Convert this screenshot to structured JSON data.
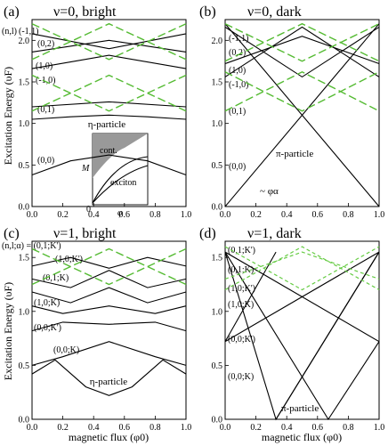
{
  "colors": {
    "black_curves": "#000000",
    "green_dashed": "#55bb33",
    "inset_fill": "#999999"
  },
  "shared": {
    "ylabel_top": "Excitation Energy (υF)",
    "ylabel_bottom": "Excitation Energy (υF)",
    "xlabel": "magnetic flux (φ0)",
    "xtick_labels": [
      "0.0",
      "0.2",
      "0.4",
      "0.6",
      "0.8",
      "1.0"
    ]
  },
  "chart_data": [
    {
      "panel": "(a)",
      "title": "ν=0, bright",
      "type": "line",
      "xlim": [
        0,
        1
      ],
      "ylim": [
        0,
        2.25
      ],
      "yticks": [
        "0.0",
        "0.5",
        "1.0",
        "1.5",
        "2.0"
      ],
      "level_labels": [
        "(n,l)",
        "(-1,1)",
        "(0,2)",
        "(1,0)",
        "(-1,0)",
        "(0,1)",
        "(0,0)"
      ],
      "annotations": [
        "η-particle"
      ],
      "inset": {
        "label_cont": "cont.",
        "label_exciton": "exciton",
        "ylabel": "M",
        "xlabel": "φ",
        "origin": "0"
      },
      "series_black": [
        {
          "name": "(0,0)",
          "x": [
            0,
            0.25,
            0.5,
            0.75,
            1
          ],
          "y": [
            0.38,
            0.55,
            0.62,
            0.55,
            0.38
          ]
        },
        {
          "name": "η-particle",
          "x": [
            0,
            0.25,
            0.5,
            0.75,
            1
          ],
          "y": [
            1.05,
            1.08,
            1.1,
            1.08,
            1.05
          ]
        },
        {
          "name": "(0,1)",
          "x": [
            0,
            0.5,
            1
          ],
          "y": [
            1.2,
            1.26,
            1.2
          ]
        },
        {
          "name": "(1,0)",
          "x": [
            0,
            0.5,
            1
          ],
          "y": [
            1.66,
            1.82,
            1.66
          ]
        },
        {
          "name": "(0,2)",
          "x": [
            0,
            0.5,
            1
          ],
          "y": [
            1.86,
            2.0,
            1.86
          ]
        },
        {
          "name": "(-1,1)",
          "x": [
            0,
            0.5,
            1
          ],
          "y": [
            2.08,
            1.9,
            2.08
          ]
        }
      ],
      "series_green": [
        {
          "x": [
            0,
            0.5,
            1
          ],
          "y": [
            1.15,
            1.58,
            1.15
          ]
        },
        {
          "x": [
            0,
            0.5,
            1
          ],
          "y": [
            1.58,
            1.15,
            1.58
          ]
        },
        {
          "x": [
            0,
            0.5,
            1
          ],
          "y": [
            2.2,
            1.77,
            2.2
          ]
        },
        {
          "x": [
            0,
            0.5,
            1
          ],
          "y": [
            1.77,
            2.2,
            1.77
          ]
        }
      ]
    },
    {
      "panel": "(b)",
      "title": "ν=0, dark",
      "type": "line",
      "xlim": [
        0,
        1
      ],
      "ylim": [
        0,
        2.25
      ],
      "yticks": [
        "0.0",
        "0.5",
        "1.0",
        "1.5",
        "2.0"
      ],
      "level_labels": [
        "(-1,1)",
        "(0,2)",
        "(1,0)",
        "(-1,0)",
        "(0,1)",
        "(0,0)"
      ],
      "annotations": [
        "π-particle",
        "~ φα"
      ],
      "series_black": [
        {
          "name": "(0,0) rising",
          "x": [
            0,
            1
          ],
          "y": [
            0,
            2.2
          ]
        },
        {
          "name": "(0,0) falling",
          "x": [
            0,
            1
          ],
          "y": [
            2.2,
            0
          ]
        },
        {
          "x": [
            0,
            0.5,
            1
          ],
          "y": [
            1.56,
            2.16,
            1.56
          ]
        },
        {
          "x": [
            0,
            0.5,
            1
          ],
          "y": [
            2.16,
            1.56,
            2.16
          ]
        },
        {
          "x": [
            0,
            0.5,
            1
          ],
          "y": [
            1.72,
            2.05,
            1.72
          ]
        }
      ],
      "series_green": [
        {
          "x": [
            0,
            0.5,
            1
          ],
          "y": [
            1.15,
            1.62,
            1.15
          ]
        },
        {
          "x": [
            0,
            0.5,
            1
          ],
          "y": [
            1.62,
            1.15,
            1.62
          ]
        },
        {
          "x": [
            0,
            0.5,
            1
          ],
          "y": [
            2.2,
            1.75,
            2.2
          ]
        },
        {
          "x": [
            0,
            0.5,
            1
          ],
          "y": [
            1.75,
            2.2,
            1.75
          ]
        }
      ]
    },
    {
      "panel": "(c)",
      "title": "ν=1, bright",
      "type": "line",
      "xlim": [
        0,
        1
      ],
      "ylim": [
        0,
        1.65
      ],
      "yticks": [
        "0.0",
        "0.5",
        "1.0",
        "1.5"
      ],
      "level_labels": [
        "(n,l;α) = (0,1;K')",
        "(1,0;K')",
        "(0,1;K)",
        "(1,0;K)",
        "(0,0;K')",
        "(0,0;K)"
      ],
      "annotations": [
        "η-particle"
      ],
      "series_black": [
        {
          "x": [
            0,
            0.15,
            0.35,
            0.5,
            0.65,
            0.85,
            1
          ],
          "y": [
            0.42,
            0.55,
            0.3,
            0.22,
            0.3,
            0.55,
            0.42
          ]
        },
        {
          "x": [
            0,
            0.2,
            0.5,
            0.8,
            1
          ],
          "y": [
            0.5,
            0.58,
            0.72,
            0.58,
            0.5
          ]
        },
        {
          "x": [
            0,
            0.2,
            0.5,
            0.8,
            1
          ],
          "y": [
            0.82,
            0.9,
            0.88,
            0.9,
            0.82
          ]
        },
        {
          "x": [
            0,
            0.2,
            0.5,
            0.8,
            1
          ],
          "y": [
            1.05,
            0.98,
            1.05,
            0.98,
            1.05
          ]
        },
        {
          "x": [
            0,
            0.25,
            0.5,
            0.75,
            1
          ],
          "y": [
            1.18,
            1.08,
            1.22,
            1.08,
            1.18
          ]
        },
        {
          "x": [
            0,
            0.25,
            0.5,
            0.75,
            1
          ],
          "y": [
            1.3,
            1.22,
            1.38,
            1.22,
            1.3
          ]
        },
        {
          "x": [
            0,
            0.25,
            0.5,
            0.75,
            1
          ],
          "y": [
            1.42,
            1.5,
            1.4,
            1.5,
            1.42
          ]
        }
      ],
      "series_green": [
        {
          "x": [
            0,
            0.5,
            1
          ],
          "y": [
            1.25,
            1.58,
            1.25
          ]
        },
        {
          "x": [
            0,
            0.5,
            1
          ],
          "y": [
            1.58,
            1.25,
            1.58
          ]
        }
      ]
    },
    {
      "panel": "(d)",
      "title": "ν=1, dark",
      "type": "line",
      "xlim": [
        0,
        1
      ],
      "ylim": [
        0,
        1.65
      ],
      "yticks": [
        "0.0",
        "0.5",
        "1.0",
        "1.5"
      ],
      "level_labels": [
        "(0,1;K')",
        "(0,1;K)",
        "(1,0;K')",
        "(1,0;K)",
        "(0,0;K')",
        "(0,0;K)"
      ],
      "annotations": [
        "π-particle"
      ],
      "series_black": [
        {
          "x": [
            0,
            0.33,
            1
          ],
          "y": [
            1.55,
            0,
            1.55
          ]
        },
        {
          "x": [
            0,
            0.67,
            1
          ],
          "y": [
            1.55,
            0,
            0.72
          ]
        },
        {
          "x": [
            0,
            0.33
          ],
          "y": [
            0.72,
            1.55
          ]
        },
        {
          "x": [
            0,
            1
          ],
          "y": [
            0.72,
            1.55
          ]
        },
        {
          "x": [
            0,
            1
          ],
          "y": [
            1.55,
            0.72
          ]
        },
        {
          "x": [
            0.33,
            1
          ],
          "y": [
            0,
            1.55
          ]
        }
      ],
      "series_green": [
        {
          "x": [
            0,
            0.5,
            1
          ],
          "y": [
            1.2,
            1.6,
            1.2
          ]
        },
        {
          "x": [
            0,
            0.5,
            1
          ],
          "y": [
            1.6,
            1.2,
            1.6
          ]
        },
        {
          "x": [
            0,
            0.5,
            1
          ],
          "y": [
            1.3,
            1.55,
            1.3
          ]
        }
      ]
    }
  ]
}
